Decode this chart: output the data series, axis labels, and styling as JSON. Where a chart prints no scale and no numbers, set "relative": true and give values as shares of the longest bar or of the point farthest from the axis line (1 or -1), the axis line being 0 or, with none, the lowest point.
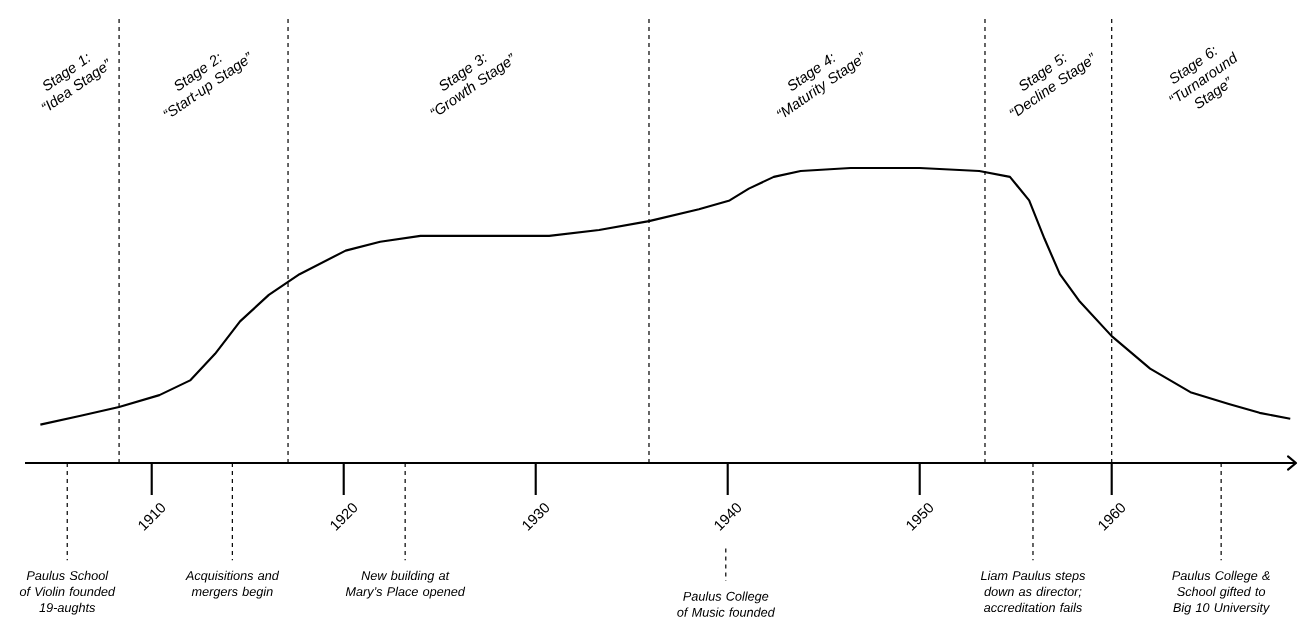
{
  "chart_data": {
    "type": "line",
    "relative": true,
    "color": "#000000",
    "line_style": "solid",
    "x": [
      1904.2,
      1906.3,
      1908.3,
      1910.4,
      1912.0,
      1913.3,
      1914.6,
      1916.1,
      1917.7,
      1920.1,
      1921.9,
      1924.0,
      1927.1,
      1930.7,
      1933.3,
      1935.9,
      1938.5,
      1940.1,
      1941.1,
      1942.4,
      1943.8,
      1946.4,
      1950.0,
      1953.1,
      1954.7,
      1955.7,
      1956.5,
      1957.3,
      1958.3,
      1960.0,
      1962.0,
      1964.1,
      1966.1,
      1967.7,
      1969.3
    ],
    "values": [
      0.13,
      0.16,
      0.19,
      0.23,
      0.28,
      0.37,
      0.48,
      0.57,
      0.64,
      0.72,
      0.75,
      0.77,
      0.77,
      0.77,
      0.79,
      0.82,
      0.86,
      0.89,
      0.93,
      0.97,
      0.99,
      1.0,
      1.0,
      0.99,
      0.97,
      0.89,
      0.76,
      0.64,
      0.55,
      0.43,
      0.32,
      0.24,
      0.2,
      0.17,
      0.15
    ],
    "xlim": [
      1903.4,
      1969.6
    ],
    "xticks": [
      1910,
      1920,
      1930,
      1940,
      1950,
      1960
    ],
    "ref_lines": [
      {
        "axis": "x",
        "value": 1908.3,
        "line_style": "dashed"
      },
      {
        "axis": "x",
        "value": 1917.1,
        "line_style": "dashed"
      },
      {
        "axis": "x",
        "value": 1935.9,
        "line_style": "dashed"
      },
      {
        "axis": "x",
        "value": 1953.4,
        "line_style": "dashed"
      },
      {
        "axis": "x",
        "value": 1960.0,
        "line_style": "dashed"
      },
      {
        "axis": "x",
        "value": 1905.6,
        "label": "Paulus School of Violin founded 19-aughts",
        "line_style": "dashed"
      },
      {
        "axis": "x",
        "value": 1914.2,
        "label": "Acquisitions and mergers begin",
        "line_style": "dashed"
      },
      {
        "axis": "x",
        "value": 1923.2,
        "label": "New building at Mary’s Place opened",
        "line_style": "dashed"
      },
      {
        "axis": "x",
        "value": 1939.9,
        "label": "Paulus College of Music founded",
        "line_style": "dashed"
      },
      {
        "axis": "x",
        "value": 1955.9,
        "label": "Liam Paulus steps down as director; accreditation fails",
        "line_style": "dashed"
      },
      {
        "axis": "x",
        "value": 1965.7,
        "label": "Paulus College & School gifted to Big 10 University",
        "line_style": "dashed"
      }
    ],
    "annotations": [
      "Stage 1: “Idea Stage”",
      "Stage 2: “Start-up Stage”",
      "Stage 3: “Growth Stage”",
      "Stage 4: “Maturity Stage”",
      "Stage 5: “Decline Stage”",
      "Stage 6: “Turnaround Stage”"
    ]
  }
}
